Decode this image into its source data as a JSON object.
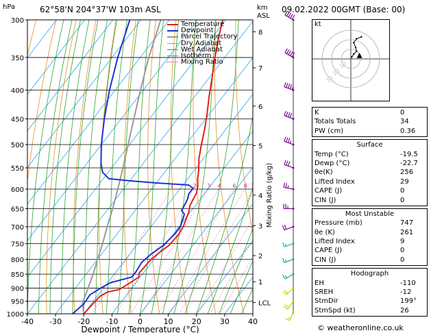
{
  "header": {
    "location": "62°58'N  204°37'W  103m  ASL",
    "datetime": "09.02.2022  00GMT  (Base: 00)"
  },
  "footer": {
    "credit": "© weatheronline.co.uk"
  },
  "colors": {
    "temperature": "#e0201b",
    "dewpoint": "#1e2fd6",
    "parcel": "#9a9a9a",
    "dry_adiabat": "#e39020",
    "wet_adiabat": "#2ea32e",
    "isotherm": "#2aa6e8",
    "mixing_ratio": "#d1207f",
    "wind_barb": "#7a0a94"
  },
  "chart_data": {
    "type": "skew-t",
    "title": "",
    "axes": {
      "x_label": "Dewpoint / Temperature (°C)",
      "x_unit_label": "",
      "x_ticks": [
        -40,
        -30,
        -20,
        -10,
        0,
        10,
        20,
        30,
        40
      ],
      "x_range": [
        -40,
        40
      ],
      "y_label": "hPa",
      "y_ticks": [
        300,
        350,
        400,
        450,
        500,
        550,
        600,
        650,
        700,
        750,
        800,
        850,
        900,
        950,
        1000
      ],
      "y_range": [
        300,
        1000
      ],
      "y_scale": "log",
      "alt_label": "km\nASL",
      "alt_unit": "km",
      "alt_ticks": [
        {
          "p": 955,
          "label": "LCL"
        },
        {
          "p": 877,
          "label": "1"
        },
        {
          "p": 788,
          "label": "2"
        },
        {
          "p": 697,
          "label": "3"
        },
        {
          "p": 615,
          "label": "4"
        },
        {
          "p": 502,
          "label": "5"
        },
        {
          "p": 427,
          "label": "6"
        },
        {
          "p": 365,
          "label": "7"
        },
        {
          "p": 315,
          "label": "8"
        }
      ],
      "mixing_axis_label": "Mixing Ratio (g/kg)",
      "mixing_ratio_labels": [
        "1",
        "2",
        "3",
        "4",
        "6",
        "8",
        "10",
        "15",
        "20",
        "25"
      ],
      "mixing_ratio_values": [
        1,
        2,
        3,
        4,
        6,
        8,
        10,
        15,
        20,
        25
      ],
      "grid": true
    },
    "legend": {
      "placement": "top",
      "entries": [
        "Temperature",
        "Dewpoint",
        "Parcel Trajectory",
        "Dry Adiabat",
        "Wet Adiabat",
        "Isotherm",
        "Mixing Ratio"
      ]
    },
    "series": [
      {
        "name": "Temperature",
        "points": [
          {
            "p": 1000,
            "t": -20.0
          },
          {
            "p": 960,
            "t": -19.5
          },
          {
            "p": 930,
            "t": -19.0
          },
          {
            "p": 915,
            "t": -17.5
          },
          {
            "p": 905,
            "t": -14.0
          },
          {
            "p": 880,
            "t": -12.0
          },
          {
            "p": 860,
            "t": -10.5
          },
          {
            "p": 845,
            "t": -11.5
          },
          {
            "p": 800,
            "t": -11.0
          },
          {
            "p": 780,
            "t": -10.0
          },
          {
            "p": 755,
            "t": -8.5
          },
          {
            "p": 725,
            "t": -8.0
          },
          {
            "p": 700,
            "t": -8.5
          },
          {
            "p": 660,
            "t": -10.5
          },
          {
            "p": 640,
            "t": -12.0
          },
          {
            "p": 610,
            "t": -13.0
          },
          {
            "p": 592,
            "t": -14.5
          },
          {
            "p": 575,
            "t": -16.5
          },
          {
            "p": 555,
            "t": -18.5
          },
          {
            "p": 530,
            "t": -21.5
          },
          {
            "p": 500,
            "t": -24.5
          },
          {
            "p": 470,
            "t": -27.5
          },
          {
            "p": 440,
            "t": -31.0
          },
          {
            "p": 410,
            "t": -35.0
          },
          {
            "p": 380,
            "t": -39.0
          },
          {
            "p": 350,
            "t": -43.5
          },
          {
            "p": 320,
            "t": -48.0
          },
          {
            "p": 300,
            "t": -51.0
          }
        ]
      },
      {
        "name": "Dewpoint",
        "points": [
          {
            "p": 1000,
            "t": -24.0
          },
          {
            "p": 960,
            "t": -22.7
          },
          {
            "p": 925,
            "t": -23.0
          },
          {
            "p": 900,
            "t": -21.0
          },
          {
            "p": 880,
            "t": -19.0
          },
          {
            "p": 860,
            "t": -13.0
          },
          {
            "p": 840,
            "t": -13.0
          },
          {
            "p": 810,
            "t": -13.5
          },
          {
            "p": 785,
            "t": -12.5
          },
          {
            "p": 755,
            "t": -10.5
          },
          {
            "p": 720,
            "t": -9.5
          },
          {
            "p": 700,
            "t": -9.5
          },
          {
            "p": 665,
            "t": -11.5
          },
          {
            "p": 655,
            "t": -13.5
          },
          {
            "p": 640,
            "t": -14.0
          },
          {
            "p": 625,
            "t": -14.5
          },
          {
            "p": 612,
            "t": -15.5
          },
          {
            "p": 598,
            "t": -15.5
          },
          {
            "p": 590,
            "t": -18.0
          },
          {
            "p": 585,
            "t": -30.0
          },
          {
            "p": 580,
            "t": -40.0
          },
          {
            "p": 575,
            "t": -48.0
          },
          {
            "p": 560,
            "t": -52.0
          },
          {
            "p": 540,
            "t": -55.0
          },
          {
            "p": 500,
            "t": -60.0
          },
          {
            "p": 450,
            "t": -66.0
          },
          {
            "p": 400,
            "t": -72.0
          },
          {
            "p": 350,
            "t": -78.0
          },
          {
            "p": 300,
            "t": -84.0
          }
        ]
      },
      {
        "name": "Parcel Trajectory",
        "points": [
          {
            "p": 1000,
            "t": -20.0
          },
          {
            "p": 955,
            "t": -23.5
          },
          {
            "p": 900,
            "t": -25.5
          },
          {
            "p": 850,
            "t": -27.5
          },
          {
            "p": 800,
            "t": -30.0
          },
          {
            "p": 750,
            "t": -32.5
          },
          {
            "p": 700,
            "t": -35.5
          },
          {
            "p": 650,
            "t": -38.5
          },
          {
            "p": 600,
            "t": -42.0
          },
          {
            "p": 550,
            "t": -46.0
          },
          {
            "p": 500,
            "t": -50.5
          },
          {
            "p": 450,
            "t": -55.5
          },
          {
            "p": 400,
            "t": -61.0
          },
          {
            "p": 350,
            "t": -67.0
          },
          {
            "p": 300,
            "t": -73.0
          }
        ]
      }
    ],
    "wind_profile": [
      {
        "p": 990,
        "dir": 200,
        "spd": 15
      },
      {
        "p": 950,
        "dir": 215,
        "spd": 20
      },
      {
        "p": 900,
        "dir": 225,
        "spd": 20
      },
      {
        "p": 850,
        "dir": 240,
        "spd": 15
      },
      {
        "p": 800,
        "dir": 250,
        "spd": 15
      },
      {
        "p": 750,
        "dir": 250,
        "spd": 15
      },
      {
        "p": 700,
        "dir": 250,
        "spd": 20
      },
      {
        "p": 650,
        "dir": 270,
        "spd": 25
      },
      {
        "p": 600,
        "dir": 280,
        "spd": 25
      },
      {
        "p": 550,
        "dir": 290,
        "spd": 30
      },
      {
        "p": 500,
        "dir": 290,
        "spd": 35
      },
      {
        "p": 450,
        "dir": 290,
        "spd": 40
      },
      {
        "p": 400,
        "dir": 290,
        "spd": 45
      },
      {
        "p": 350,
        "dir": 300,
        "spd": 50
      },
      {
        "p": 300,
        "dir": 300,
        "spd": 50
      }
    ],
    "hodograph": {
      "label": "kt",
      "ring_labels": [
        "10",
        "20",
        "30"
      ],
      "points": [
        {
          "u": 1,
          "v": 2
        },
        {
          "u": 3,
          "v": 5
        },
        {
          "u": 6,
          "v": 8
        },
        {
          "u": 5,
          "v": 12
        },
        {
          "u": 3,
          "v": 17
        },
        {
          "u": 6,
          "v": 21
        },
        {
          "u": 11,
          "v": 23
        }
      ],
      "storm_motion": {
        "u": 9,
        "v": 3
      }
    }
  },
  "indices": [
    {
      "label": "K",
      "value": "0"
    },
    {
      "label": "Totals Totals",
      "value": "34"
    },
    {
      "label": "PW (cm)",
      "value": "0.36"
    }
  ],
  "surface": {
    "title": "Surface",
    "rows": [
      {
        "label": "Temp (°C)",
        "value": "-19.5"
      },
      {
        "label": "Dewp (°C)",
        "value": "-22.7"
      },
      {
        "label": "θe(K)",
        "value": "256"
      },
      {
        "label": "Lifted Index",
        "value": "29"
      },
      {
        "label": "CAPE (J)",
        "value": "0"
      },
      {
        "label": "CIN (J)",
        "value": "0"
      }
    ]
  },
  "most_unstable": {
    "title": "Most Unstable",
    "rows": [
      {
        "label": "Pressure (mb)",
        "value": "747"
      },
      {
        "label": "θe (K)",
        "value": "261"
      },
      {
        "label": "Lifted Index",
        "value": "9"
      },
      {
        "label": "CAPE (J)",
        "value": "0"
      },
      {
        "label": "CIN (J)",
        "value": "0"
      }
    ]
  },
  "hodograph_box": {
    "title": "Hodograph",
    "rows": [
      {
        "label": "EH",
        "value": "-110"
      },
      {
        "label": "SREH",
        "value": "-12"
      },
      {
        "label": "StmDir",
        "value": "199°"
      },
      {
        "label": "StmSpd (kt)",
        "value": "26"
      }
    ]
  }
}
